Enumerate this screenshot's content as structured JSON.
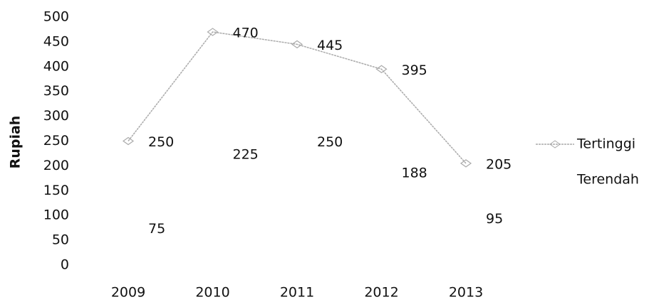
{
  "chart_data": {
    "type": "line",
    "y_label": "Rupiah",
    "categories": [
      "2009",
      "2010",
      "2011",
      "2012",
      "2013"
    ],
    "series": [
      {
        "name": "Tertinggi",
        "color": "#aaaaaa",
        "marker": true,
        "values": [
          250,
          470,
          445,
          395,
          205
        ]
      },
      {
        "name": "Terendah",
        "color": "#ffffff",
        "marker": false,
        "values": [
          75,
          225,
          250,
          188,
          95
        ]
      }
    ],
    "ylim": [
      0,
      500
    ],
    "yticks": [
      0,
      50,
      100,
      150,
      200,
      250,
      300,
      350,
      400,
      450,
      500
    ],
    "grid": false,
    "legend": "right",
    "data_labels": true
  }
}
